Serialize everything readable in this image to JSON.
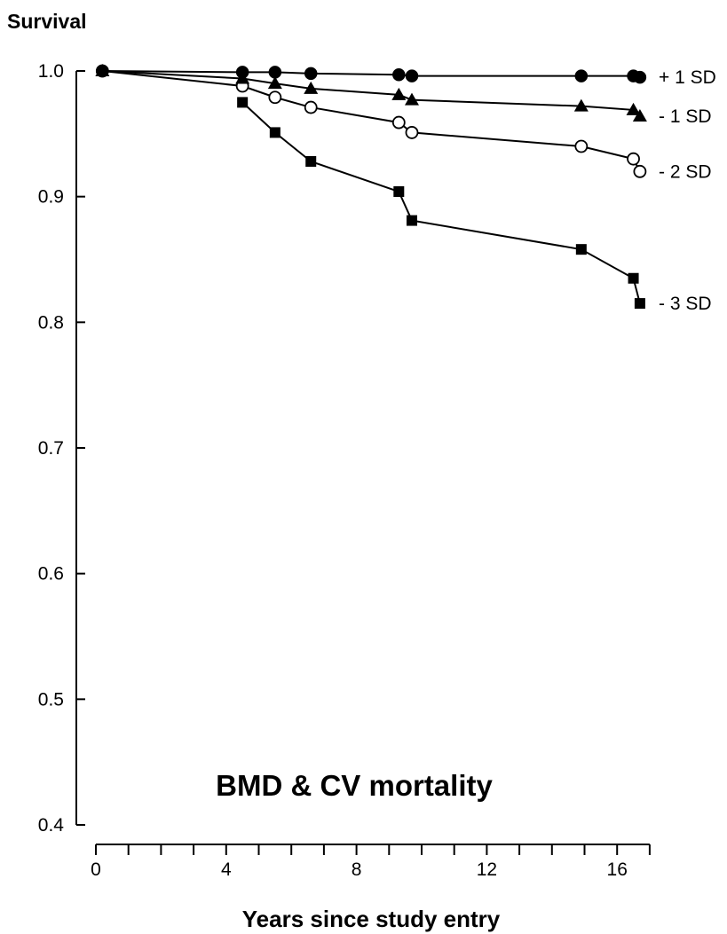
{
  "chart_data": {
    "type": "line",
    "title": "BMD & CV mortality",
    "xlabel": "Years since study entry",
    "ylabel": "Survival",
    "xlim": [
      0,
      17
    ],
    "ylim": [
      0.4,
      1.0
    ],
    "x_ticks": [
      0,
      4,
      8,
      12,
      16
    ],
    "y_ticks": [
      "0.4",
      "0.5",
      "0.6",
      "0.7",
      "0.8",
      "0.9",
      "1.0"
    ],
    "grid": false,
    "legend": "series labels at right end of lines",
    "series": [
      {
        "name": "+ 1 SD",
        "marker": "filled-circle",
        "x": [
          0.2,
          4.5,
          5.5,
          6.6,
          9.3,
          9.7,
          14.9,
          16.5,
          16.7
        ],
        "y": [
          1.0,
          0.999,
          0.999,
          0.998,
          0.997,
          0.996,
          0.996,
          0.996,
          0.995
        ]
      },
      {
        "name": "- 1 SD",
        "marker": "filled-triangle",
        "x": [
          0.2,
          4.5,
          5.5,
          6.6,
          9.3,
          9.7,
          14.9,
          16.5,
          16.7
        ],
        "y": [
          1.0,
          0.994,
          0.99,
          0.986,
          0.981,
          0.977,
          0.972,
          0.969,
          0.964
        ]
      },
      {
        "name": "- 2 SD",
        "marker": "open-circle",
        "x": [
          0.2,
          4.5,
          5.5,
          6.6,
          9.3,
          9.7,
          14.9,
          16.5,
          16.7
        ],
        "y": [
          1.0,
          0.988,
          0.979,
          0.971,
          0.959,
          0.951,
          0.94,
          0.93,
          0.92
        ]
      },
      {
        "name": "- 3 SD",
        "marker": "filled-square",
        "x": [
          4.5,
          5.5,
          6.6,
          9.3,
          9.7,
          14.9,
          16.5,
          16.7
        ],
        "y": [
          0.975,
          0.951,
          0.928,
          0.904,
          0.881,
          0.858,
          0.835,
          0.815
        ]
      }
    ]
  }
}
